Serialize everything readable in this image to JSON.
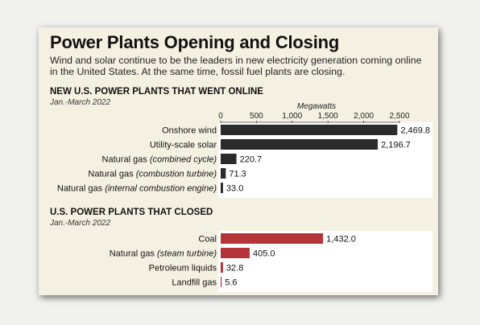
{
  "title": "Power Plants Opening and Closing",
  "subtitle": "Wind and solar continue to be the leaders in new electricity generation coming online in the United States. At the same time, fossil fuel plants are closing.",
  "colors": {
    "opened": "#2b2b2b",
    "closed": "#b5343a",
    "plot_bg": "#ffffff",
    "card_bg": "#f5f1e2"
  },
  "chart_data": [
    {
      "type": "bar",
      "orientation": "horizontal",
      "title": "NEW U.S. POWER PLANTS THAT WENT ONLINE",
      "subtitle": "Jan.-March 2022",
      "xlabel": "Megawatts",
      "xlim": [
        0,
        2500
      ],
      "xticks": [
        "0",
        "500",
        "1,000",
        "1,500",
        "2,000",
        "2,500"
      ],
      "xtick_values": [
        0,
        500,
        1000,
        1500,
        2000,
        2500
      ],
      "categories": [
        {
          "label": "Onshore wind",
          "qualifier": ""
        },
        {
          "label": "Utility-scale solar",
          "qualifier": ""
        },
        {
          "label": "Natural gas ",
          "qualifier": "(combined cycle)"
        },
        {
          "label": "Natural gas ",
          "qualifier": "(combustion turbine)"
        },
        {
          "label": "Natural gas ",
          "qualifier": "(internal combustion engine)"
        }
      ],
      "values": [
        2469.8,
        2196.7,
        220.7,
        71.3,
        33.0
      ],
      "value_labels": [
        "2,469.8",
        "2,196.7",
        "220.7",
        "71.3",
        "33.0"
      ],
      "color": "#2b2b2b"
    },
    {
      "type": "bar",
      "orientation": "horizontal",
      "title": "U.S. POWER PLANTS THAT CLOSED",
      "subtitle": "Jan.-March 2022",
      "xlim": [
        0,
        2500
      ],
      "categories": [
        {
          "label": "Coal",
          "qualifier": ""
        },
        {
          "label": "Natural gas ",
          "qualifier": "(steam turbine)"
        },
        {
          "label": "Petroleum liquids",
          "qualifier": ""
        },
        {
          "label": "Landfill gas",
          "qualifier": ""
        }
      ],
      "values": [
        1432.0,
        405.0,
        32.8,
        5.6
      ],
      "value_labels": [
        "1,432.0",
        "405.0",
        "32.8",
        "5.6"
      ],
      "color": "#b5343a"
    }
  ]
}
